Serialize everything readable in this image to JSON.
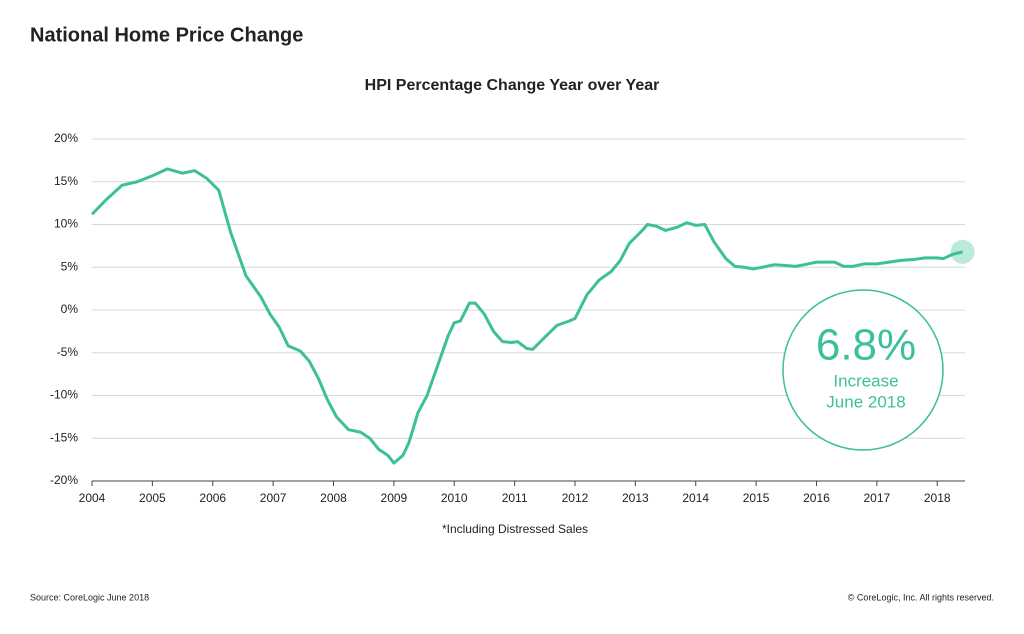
{
  "chart_data": {
    "type": "line",
    "page_title": "National Home Price Change",
    "title": "HPI Percentage Change Year over Year",
    "footnote": "*Including Distressed Sales",
    "source": "Source: CoreLogic June 2018",
    "copyright": "© CoreLogic, Inc. All rights reserved.",
    "annotation": {
      "value": "6.8%",
      "line1": "Increase",
      "line2": "June 2018"
    },
    "x": [
      2004.0,
      2004.25,
      2004.5,
      2004.75,
      2005.0,
      2005.25,
      2005.5,
      2005.7,
      2005.9,
      2006.1,
      2006.3,
      2006.55,
      2006.8,
      2006.95,
      2007.1,
      2007.25,
      2007.45,
      2007.6,
      2007.75,
      2007.9,
      2008.05,
      2008.25,
      2008.45,
      2008.6,
      2008.75,
      2008.9,
      2009.0,
      2009.15,
      2009.25,
      2009.4,
      2009.55,
      2009.7,
      2009.9,
      2010.0,
      2010.1,
      2010.25,
      2010.35,
      2010.5,
      2010.65,
      2010.8,
      2010.95,
      2011.05,
      2011.2,
      2011.3,
      2011.5,
      2011.7,
      2011.9,
      2012.0,
      2012.2,
      2012.4,
      2012.6,
      2012.75,
      2012.9,
      2013.1,
      2013.2,
      2013.35,
      2013.5,
      2013.7,
      2013.85,
      2014.0,
      2014.15,
      2014.3,
      2014.5,
      2014.65,
      2014.8,
      2014.95,
      2015.1,
      2015.3,
      2015.5,
      2015.65,
      2015.8,
      2016.0,
      2016.3,
      2016.45,
      2016.6,
      2016.8,
      2017.0,
      2017.2,
      2017.4,
      2017.6,
      2017.8,
      2018.0,
      2018.1,
      2018.25,
      2018.42
    ],
    "series": [
      {
        "name": "HPI",
        "color": "#3cbf9b",
        "values": [
          11.2,
          13,
          14.6,
          15.0,
          15.7,
          16.5,
          16.0,
          16.3,
          15.4,
          14.0,
          9.0,
          4.0,
          1.5,
          -0.5,
          -2,
          -4.2,
          -4.8,
          -6,
          -8,
          -10.5,
          -12.5,
          -14,
          -14.3,
          -15,
          -16.3,
          -17,
          -17.9,
          -17,
          -15.5,
          -12,
          -10,
          -7,
          -3,
          -1.5,
          -1.3,
          0.8,
          0.8,
          -0.5,
          -2.5,
          -3.7,
          -3.8,
          -3.7,
          -4.5,
          -4.6,
          -3.2,
          -1.8,
          -1.3,
          -1.0,
          1.8,
          3.5,
          4.5,
          5.8,
          7.8,
          9.2,
          10.0,
          9.8,
          9.3,
          9.7,
          10.2,
          9.9,
          10.0,
          8.0,
          6.0,
          5.1,
          5.0,
          4.8,
          5.0,
          5.3,
          5.2,
          5.1,
          5.3,
          5.6,
          5.6,
          5.1,
          5.1,
          5.4,
          5.4,
          5.6,
          5.8,
          5.9,
          6.1,
          6.1,
          6.0,
          6.5,
          6.8
        ]
      }
    ],
    "xlim": [
      2004,
      2018.46
    ],
    "xticks": [
      2004,
      2005,
      2006,
      2007,
      2008,
      2009,
      2010,
      2011,
      2012,
      2013,
      2014,
      2015,
      2016,
      2017,
      2018
    ],
    "ylim": [
      -20,
      20
    ],
    "yticks": [
      {
        "value": -20,
        "label": "-20%"
      },
      {
        "value": -15,
        "label": "-15%"
      },
      {
        "value": -10,
        "label": "-10%"
      },
      {
        "value": -5,
        "label": "-5%"
      },
      {
        "value": 0,
        "label": "0%"
      },
      {
        "value": 5,
        "label": "5%"
      },
      {
        "value": 10,
        "label": "10%"
      },
      {
        "value": 15,
        "label": "15%"
      },
      {
        "value": 20,
        "label": "20%"
      }
    ],
    "grid": true
  }
}
